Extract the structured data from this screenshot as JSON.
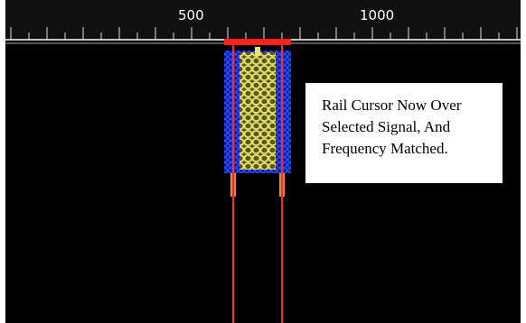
{
  "scale": {
    "labels": [
      "500",
      "1000"
    ]
  },
  "annotation": {
    "lines": [
      "Rail Cursor Now Over",
      "Selected Signal, And",
      "Frequency Matched."
    ]
  }
}
